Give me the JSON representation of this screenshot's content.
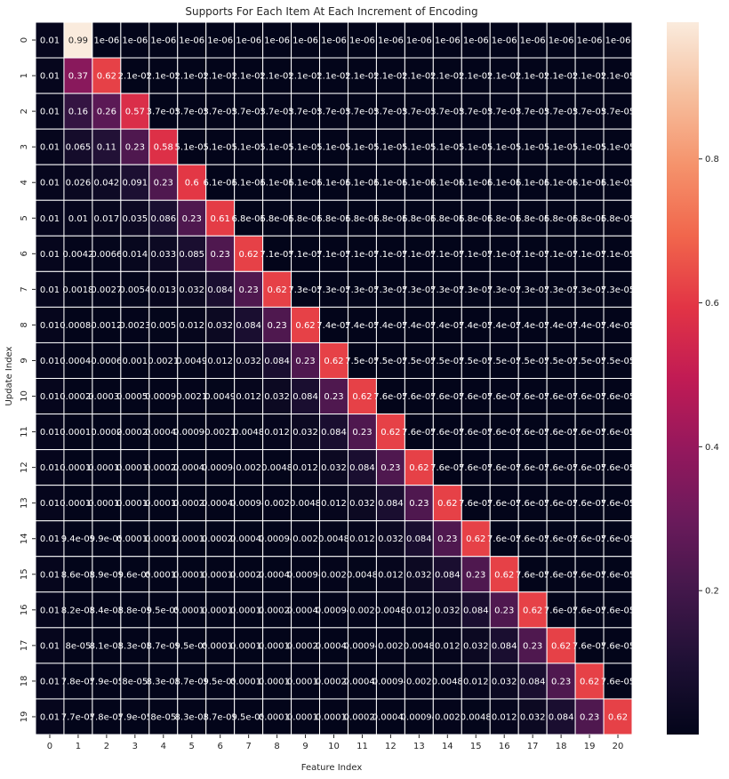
{
  "chart_data": {
    "type": "heatmap",
    "title": "Supports For Each Item At Each Increment of Encoding",
    "xlabel": "Feature Index",
    "ylabel": "Update Index",
    "x_ticks": [
      "0",
      "1",
      "2",
      "3",
      "4",
      "5",
      "6",
      "7",
      "8",
      "9",
      "10",
      "11",
      "12",
      "13",
      "14",
      "15",
      "16",
      "17",
      "18",
      "19",
      "20"
    ],
    "y_ticks": [
      "0",
      "1",
      "2",
      "3",
      "4",
      "5",
      "6",
      "7",
      "8",
      "9",
      "10",
      "11",
      "12",
      "13",
      "14",
      "15",
      "16",
      "17",
      "18",
      "19"
    ],
    "colorbar": {
      "ticks": [
        0.2,
        0.4,
        0.6,
        0.8
      ],
      "tick_labels": [
        "0.2",
        "0.4",
        "0.6",
        "0.8"
      ],
      "range": [
        0.0,
        0.99
      ],
      "colormap": "rocket"
    },
    "cell_labels": [
      [
        "0.01",
        "0.99",
        "1e-06",
        "1e-06",
        "1e-06",
        "1e-06",
        "1e-06",
        "1e-06",
        "1e-06",
        "1e-06",
        "1e-06",
        "1e-06",
        "1e-06",
        "1e-06",
        "1e-06",
        "1e-06",
        "1e-06",
        "1e-06",
        "1e-06",
        "1e-06",
        "1e-06"
      ],
      [
        "0.01",
        "0.37",
        "0.62",
        "2.1e-05",
        "2.1e-05",
        "2.1e-05",
        "2.1e-05",
        "2.1e-05",
        "2.1e-05",
        "2.1e-05",
        "2.1e-05",
        "2.1e-05",
        "2.1e-05",
        "2.1e-05",
        "2.1e-05",
        "2.1e-05",
        "2.1e-05",
        "2.1e-05",
        "2.1e-05",
        "2.1e-05",
        "2.1e-05"
      ],
      [
        "0.01",
        "0.16",
        "0.26",
        "0.57",
        "3.7e-05",
        "3.7e-05",
        "3.7e-05",
        "3.7e-05",
        "3.7e-05",
        "3.7e-05",
        "3.7e-05",
        "3.7e-05",
        "3.7e-05",
        "3.7e-05",
        "3.7e-05",
        "3.7e-05",
        "3.7e-05",
        "3.7e-05",
        "3.7e-05",
        "3.7e-05",
        "3.7e-05"
      ],
      [
        "0.01",
        "0.065",
        "0.11",
        "0.23",
        "0.58",
        "5.1e-05",
        "5.1e-05",
        "5.1e-05",
        "5.1e-05",
        "5.1e-05",
        "5.1e-05",
        "5.1e-05",
        "5.1e-05",
        "5.1e-05",
        "5.1e-05",
        "5.1e-05",
        "5.1e-05",
        "5.1e-05",
        "5.1e-05",
        "5.1e-05",
        "5.1e-05"
      ],
      [
        "0.01",
        "0.026",
        "0.042",
        "0.091",
        "0.23",
        "0.6",
        "6.1e-05",
        "6.1e-05",
        "6.1e-05",
        "6.1e-05",
        "6.1e-05",
        "6.1e-05",
        "6.1e-05",
        "6.1e-05",
        "6.1e-05",
        "6.1e-05",
        "6.1e-05",
        "6.1e-05",
        "6.1e-05",
        "6.1e-05",
        "6.1e-05"
      ],
      [
        "0.01",
        "0.01",
        "0.017",
        "0.035",
        "0.086",
        "0.23",
        "0.61",
        "6.8e-05",
        "6.8e-05",
        "6.8e-05",
        "6.8e-05",
        "6.8e-05",
        "6.8e-05",
        "6.8e-05",
        "6.8e-05",
        "6.8e-05",
        "6.8e-05",
        "6.8e-05",
        "6.8e-05",
        "6.8e-05",
        "6.8e-05"
      ],
      [
        "0.01",
        "0.0042",
        "0.0066",
        "0.014",
        "0.033",
        "0.085",
        "0.23",
        "0.62",
        "7.1e-05",
        "7.1e-05",
        "7.1e-05",
        "7.1e-05",
        "7.1e-05",
        "7.1e-05",
        "7.1e-05",
        "7.1e-05",
        "7.1e-05",
        "7.1e-05",
        "7.1e-05",
        "7.1e-05",
        "7.1e-05"
      ],
      [
        "0.01",
        "0.0018",
        "0.0027",
        "0.0054",
        "0.013",
        "0.032",
        "0.084",
        "0.23",
        "0.62",
        "7.3e-05",
        "7.3e-05",
        "7.3e-05",
        "7.3e-05",
        "7.3e-05",
        "7.3e-05",
        "7.3e-05",
        "7.3e-05",
        "7.3e-05",
        "7.3e-05",
        "7.3e-05",
        "7.3e-05"
      ],
      [
        "0.01",
        "0.00084",
        "0.0012",
        "0.0023",
        "0.005",
        "0.012",
        "0.032",
        "0.084",
        "0.23",
        "0.62",
        "7.4e-05",
        "7.4e-05",
        "7.4e-05",
        "7.4e-05",
        "7.4e-05",
        "7.4e-05",
        "7.4e-05",
        "7.4e-05",
        "7.4e-05",
        "7.4e-05",
        "7.4e-05"
      ],
      [
        "0.01",
        "0.00044",
        "0.0006",
        "0.001",
        "0.0021",
        "0.0049",
        "0.012",
        "0.032",
        "0.084",
        "0.23",
        "0.62",
        "7.5e-05",
        "7.5e-05",
        "7.5e-05",
        "7.5e-05",
        "7.5e-05",
        "7.5e-05",
        "7.5e-05",
        "7.5e-05",
        "7.5e-05",
        "7.5e-05"
      ],
      [
        "0.01",
        "0.00026",
        "0.00033",
        "0.00052",
        "0.00097",
        "0.0021",
        "0.0049",
        "0.012",
        "0.032",
        "0.084",
        "0.23",
        "0.62",
        "7.6e-05",
        "7.6e-05",
        "7.6e-05",
        "7.6e-05",
        "7.6e-05",
        "7.6e-05",
        "7.6e-05",
        "7.6e-05",
        "7.6e-05"
      ],
      [
        "0.01",
        "0.00017",
        "0.0002",
        "0.00029",
        "0.00048",
        "0.00096",
        "0.0021",
        "0.0048",
        "0.012",
        "0.032",
        "0.084",
        "0.23",
        "0.62",
        "7.6e-05",
        "7.6e-05",
        "7.6e-05",
        "7.6e-05",
        "7.6e-05",
        "7.6e-05",
        "7.6e-05",
        "7.6e-05"
      ],
      [
        "0.01",
        "0.00013",
        "0.00015",
        "0.00019",
        "0.00028",
        "0.00048",
        "0.00094",
        "0.002",
        "0.0048",
        "0.012",
        "0.032",
        "0.084",
        "0.23",
        "0.62",
        "7.6e-05",
        "7.6e-05",
        "7.6e-05",
        "7.6e-05",
        "7.6e-05",
        "7.6e-05",
        "7.6e-05"
      ],
      [
        "0.01",
        "0.00011",
        "0.00012",
        "0.00014",
        "0.00018",
        "0.00028",
        "0.00048",
        "0.00094",
        "0.002",
        "0.0048",
        "0.012",
        "0.032",
        "0.084",
        "0.23",
        "0.62",
        "7.6e-05",
        "7.6e-05",
        "7.6e-05",
        "7.6e-05",
        "7.6e-05",
        "7.6e-05"
      ],
      [
        "0.01",
        "9.4e-05",
        "9.9e-05",
        "0.00011",
        "0.00014",
        "0.00018",
        "0.00028",
        "0.00048",
        "0.00094",
        "0.002",
        "0.0048",
        "0.012",
        "0.032",
        "0.084",
        "0.23",
        "0.62",
        "7.6e-05",
        "7.6e-05",
        "7.6e-05",
        "7.6e-05",
        "7.6e-05"
      ],
      [
        "0.01",
        "8.6e-05",
        "8.9e-05",
        "9.6e-05",
        "0.00011",
        "0.00013",
        "0.00018",
        "0.00028",
        "0.00048",
        "0.00094",
        "0.002",
        "0.0048",
        "0.012",
        "0.032",
        "0.084",
        "0.23",
        "0.62",
        "7.6e-05",
        "7.6e-05",
        "7.6e-05",
        "7.6e-05"
      ],
      [
        "0.01",
        "8.2e-05",
        "8.4e-05",
        "8.8e-05",
        "9.5e-05",
        "0.00011",
        "0.00013",
        "0.00018",
        "0.00028",
        "0.00048",
        "0.00094",
        "0.002",
        "0.0048",
        "0.012",
        "0.032",
        "0.084",
        "0.23",
        "0.62",
        "7.6e-05",
        "7.6e-05",
        "7.6e-05"
      ],
      [
        "0.01",
        "8e-05",
        "8.1e-05",
        "8.3e-05",
        "8.7e-05",
        "9.5e-05",
        "0.00011",
        "0.00013",
        "0.00018",
        "0.00028",
        "0.00048",
        "0.00094",
        "0.002",
        "0.0048",
        "0.012",
        "0.032",
        "0.084",
        "0.23",
        "0.62",
        "7.6e-05",
        "7.6e-05"
      ],
      [
        "0.01",
        "7.8e-05",
        "7.9e-05",
        "8e-05",
        "8.3e-05",
        "8.7e-05",
        "9.5e-05",
        "0.00011",
        "0.00013",
        "0.00018",
        "0.00028",
        "0.00048",
        "0.00094",
        "0.002",
        "0.0048",
        "0.012",
        "0.032",
        "0.084",
        "0.23",
        "0.62",
        "7.6e-05"
      ],
      [
        "0.01",
        "7.7e-05",
        "7.8e-05",
        "7.9e-05",
        "8e-05",
        "8.3e-05",
        "8.7e-05",
        "9.5e-05",
        "0.00011",
        "0.00013",
        "0.00018",
        "0.00028",
        "0.00048",
        "0.00094",
        "0.002",
        "0.0048",
        "0.012",
        "0.032",
        "0.084",
        "0.23",
        "0.62"
      ]
    ]
  }
}
